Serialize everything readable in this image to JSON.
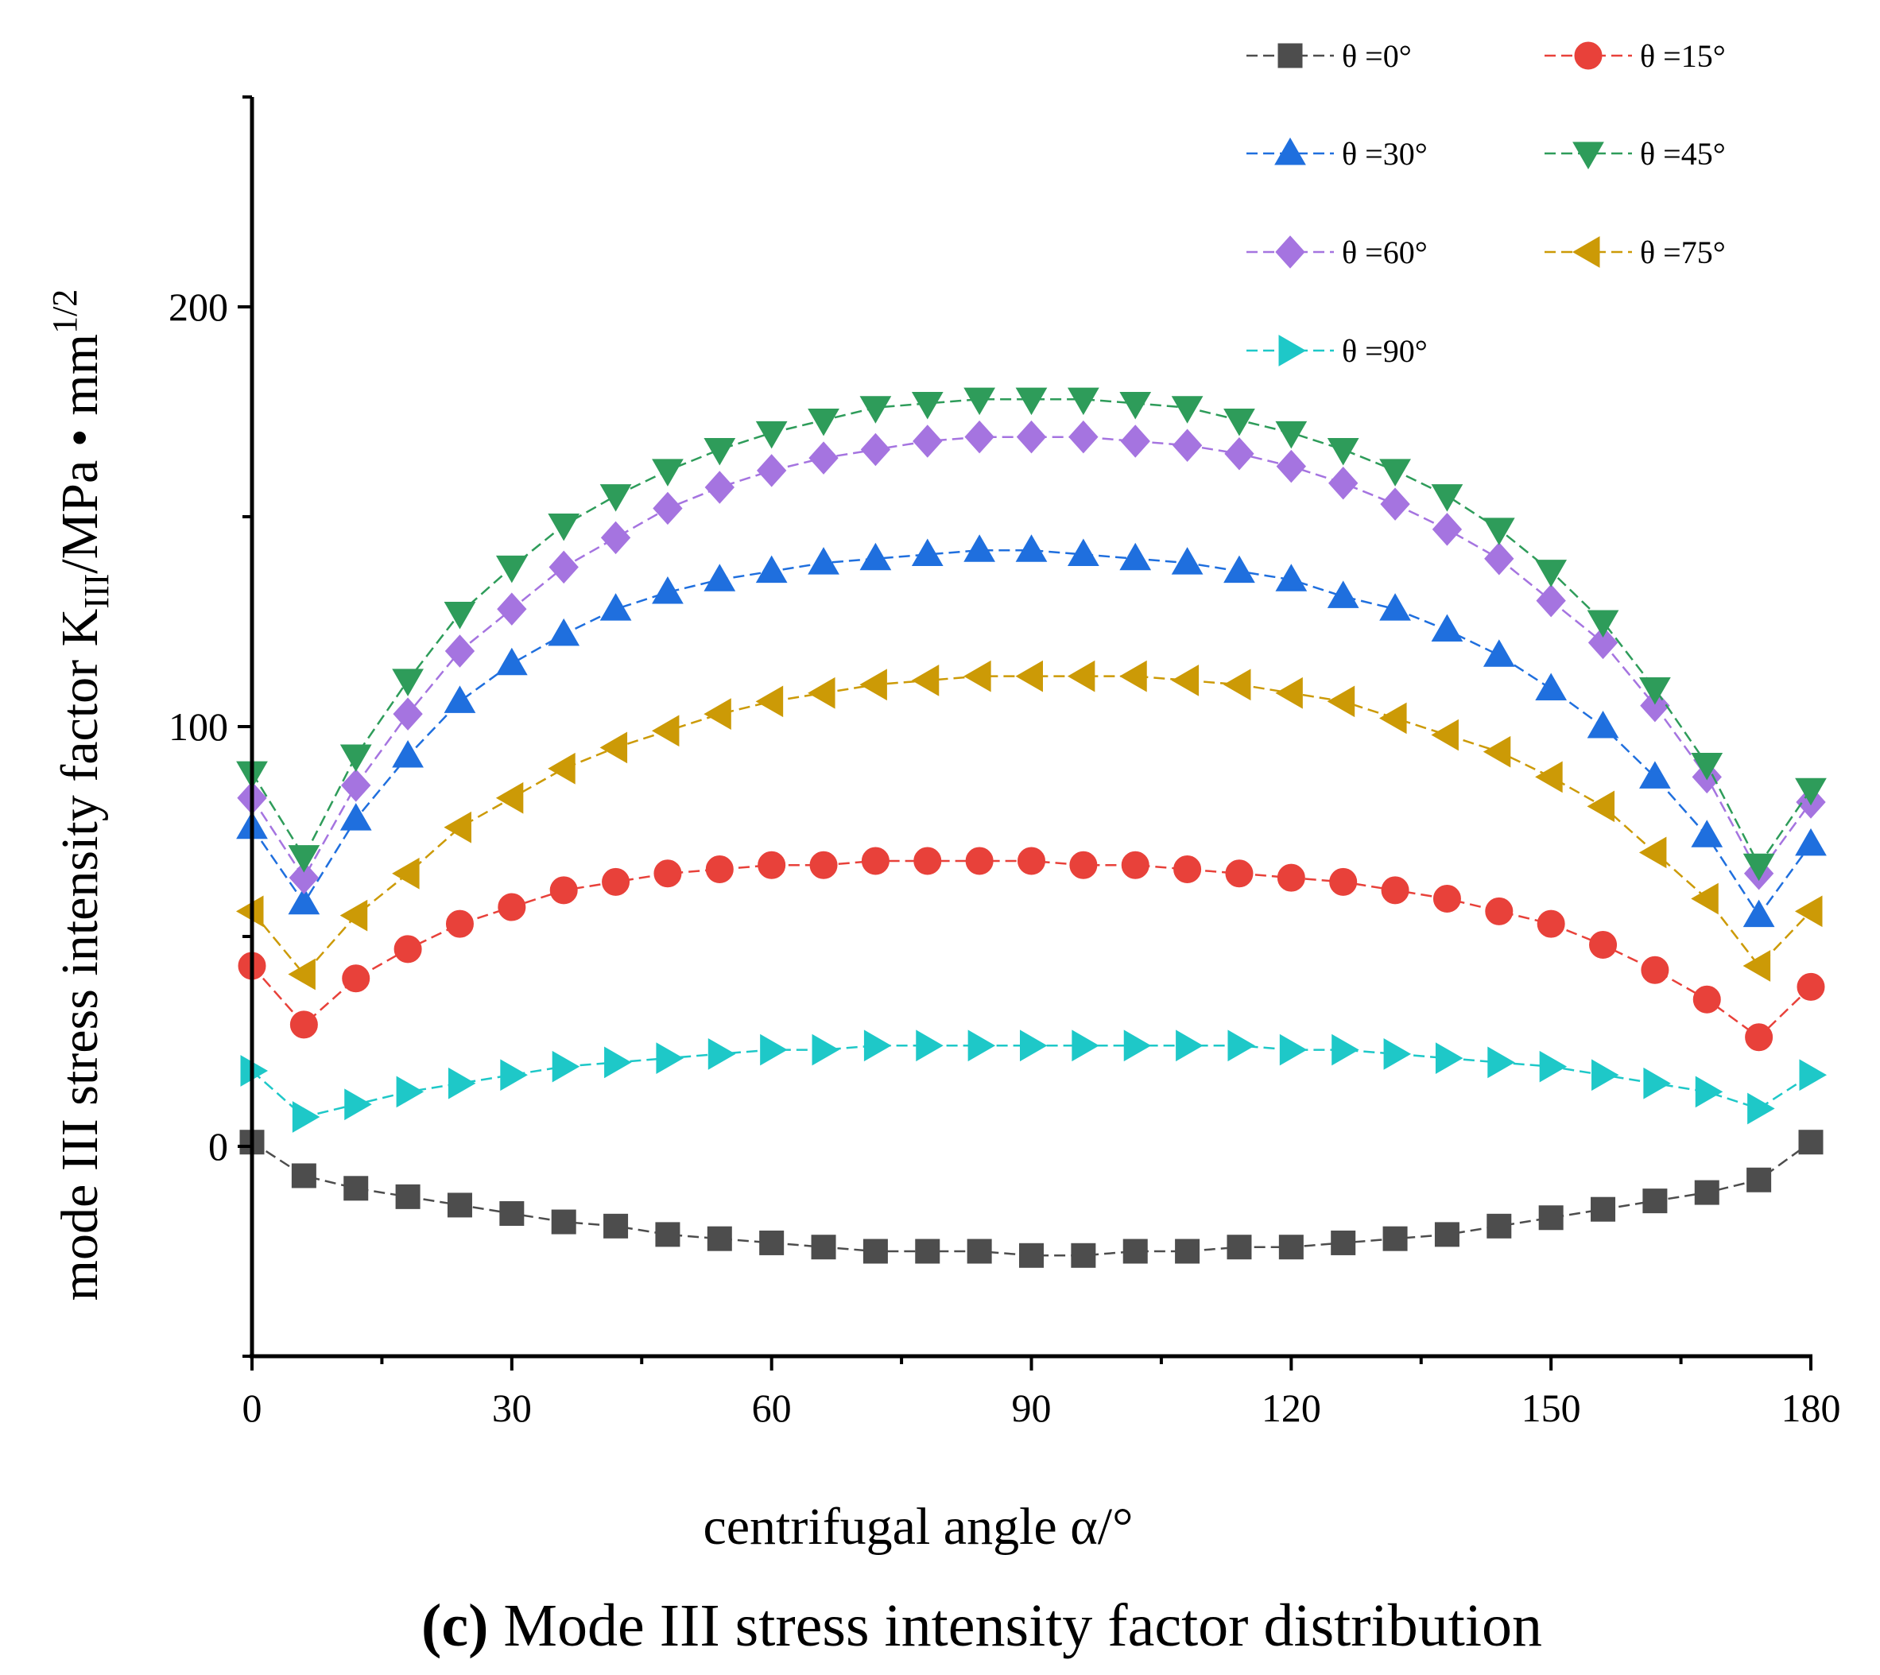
{
  "chart_data": {
    "type": "line",
    "xlabel": "centrifugal angle α/°",
    "ylabel": {
      "prefix": "mode III stress intensity factor K",
      "subscript": "III",
      "middle": "/MPa • mm",
      "superscript": "1/2"
    },
    "caption": {
      "label": "(c)",
      "text": " Mode III stress intensity factor distribution"
    },
    "xlim": [
      0,
      180
    ],
    "ylim": [
      -50,
      250
    ],
    "xticks": [
      0,
      30,
      60,
      90,
      120,
      150,
      180
    ],
    "yticks": [
      0,
      100,
      200
    ],
    "x": [
      0,
      6,
      12,
      18,
      24,
      30,
      36,
      42,
      48,
      54,
      60,
      66,
      72,
      78,
      84,
      90,
      96,
      102,
      108,
      114,
      120,
      126,
      132,
      138,
      144,
      150,
      156,
      162,
      168,
      174,
      180
    ],
    "series": [
      {
        "name": "θ =0°",
        "marker": "square",
        "color": "#4d4d4d",
        "values": [
          1,
          -7,
          -10,
          -12,
          -14,
          -16,
          -18,
          -19,
          -21,
          -22,
          -23,
          -24,
          -25,
          -25,
          -25,
          -26,
          -26,
          -25,
          -25,
          -24,
          -24,
          -23,
          -22,
          -21,
          -19,
          -17,
          -15,
          -13,
          -11,
          -8,
          1
        ]
      },
      {
        "name": "θ =15°",
        "marker": "circle",
        "color": "#e8413a",
        "values": [
          43,
          29,
          40,
          47,
          53,
          57,
          61,
          63,
          65,
          66,
          67,
          67,
          68,
          68,
          68,
          68,
          67,
          67,
          66,
          65,
          64,
          63,
          61,
          59,
          56,
          53,
          48,
          42,
          35,
          26,
          38
        ]
      },
      {
        "name": "θ =30°",
        "marker": "triangle-up",
        "color": "#1f6fde",
        "values": [
          76,
          58,
          78,
          93,
          106,
          115,
          122,
          128,
          132,
          135,
          137,
          139,
          140,
          141,
          142,
          142,
          141,
          140,
          139,
          137,
          135,
          131,
          128,
          123,
          117,
          109,
          100,
          88,
          74,
          55,
          72
        ]
      },
      {
        "name": "θ =45°",
        "marker": "triangle-down",
        "color": "#2e9c5a",
        "values": [
          89,
          69,
          93,
          111,
          127,
          138,
          148,
          155,
          161,
          166,
          170,
          173,
          176,
          177,
          178,
          178,
          178,
          177,
          176,
          173,
          170,
          166,
          161,
          155,
          147,
          137,
          125,
          109,
          91,
          67,
          85
        ]
      },
      {
        "name": "θ =60°",
        "marker": "diamond",
        "color": "#a574e0",
        "values": [
          83,
          64,
          86,
          103,
          118,
          128,
          138,
          145,
          152,
          157,
          161,
          164,
          166,
          168,
          169,
          169,
          169,
          168,
          167,
          165,
          162,
          158,
          153,
          147,
          140,
          130,
          120,
          105,
          88,
          65,
          82
        ]
      },
      {
        "name": "θ =75°",
        "marker": "triangle-left",
        "color": "#cc9a06",
        "values": [
          56,
          41,
          55,
          65,
          76,
          83,
          90,
          95,
          99,
          103,
          106,
          108,
          110,
          111,
          112,
          112,
          112,
          112,
          111,
          110,
          108,
          106,
          102,
          98,
          94,
          88,
          81,
          70,
          59,
          43,
          56
        ]
      },
      {
        "name": "θ =90°",
        "marker": "triangle-right",
        "color": "#1ec8c8",
        "values": [
          18,
          7,
          10,
          13,
          15,
          17,
          19,
          20,
          21,
          22,
          23,
          23,
          24,
          24,
          24,
          24,
          24,
          24,
          24,
          24,
          23,
          23,
          22,
          21,
          20,
          19,
          17,
          15,
          13,
          9,
          17
        ]
      }
    ],
    "legend_position": "top-right"
  }
}
